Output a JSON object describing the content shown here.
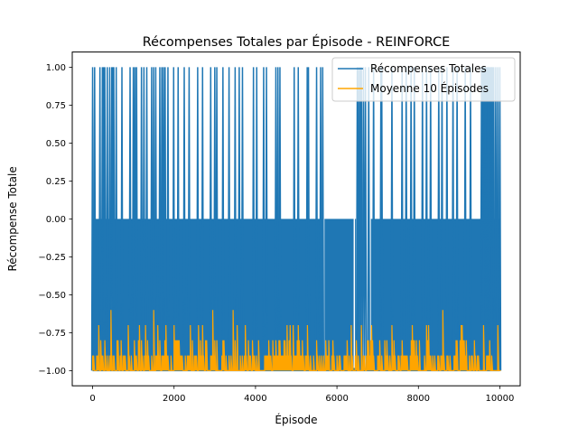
{
  "chart_data": {
    "type": "line",
    "title": "Récompenses Totales par Épisode - REINFORCE",
    "xlabel": "Épisode",
    "ylabel": "Récompense Totale",
    "xlim": [
      -500,
      10500
    ],
    "ylim": [
      -1.1,
      1.1
    ],
    "x_ticks": [
      0,
      2000,
      4000,
      6000,
      8000,
      10000
    ],
    "x_tick_labels": [
      "0",
      "2000",
      "4000",
      "6000",
      "8000",
      "10000"
    ],
    "y_ticks": [
      -1.0,
      -0.75,
      -0.5,
      -0.25,
      0.0,
      0.25,
      0.5,
      0.75,
      1.0
    ],
    "y_tick_labels": [
      "−1.00",
      "−0.75",
      "−0.50",
      "−0.25",
      "0.00",
      "0.25",
      "0.50",
      "0.75",
      "1.00"
    ],
    "grid": false,
    "legend_position": "top-right",
    "series": [
      {
        "name": "Récompenses Totales",
        "color": "#1f77b4",
        "values_description_free": true,
        "x_range": [
          0,
          10000
        ],
        "value_levels": [
          -1.0,
          0.0,
          1.0
        ],
        "win_episodes": [
          0,
          50,
          180,
          240,
          270,
          300,
          360,
          420,
          470,
          500,
          520,
          580,
          720,
          920,
          1000,
          1040,
          1080,
          1200,
          1260,
          1330,
          1450,
          1500,
          1550,
          1650,
          1700,
          1740,
          1780,
          1850,
          1990,
          2100,
          2250,
          2370,
          2580,
          2700,
          2900,
          3000,
          3050,
          3200,
          3350,
          3500,
          3600,
          3680,
          3950,
          4030,
          4200,
          4270,
          4500,
          4550,
          4600,
          4950,
          5050,
          5270,
          5300,
          5500,
          5600,
          5650,
          6500,
          6530,
          6570,
          6600,
          6650,
          6700,
          6780,
          6900,
          7080,
          7100,
          7350,
          7600,
          7700,
          7820,
          7900,
          8100,
          8200,
          8300,
          8500,
          8580,
          8700,
          8850,
          8950,
          9150,
          9280,
          9550,
          9560,
          9580,
          9600,
          9620,
          9650,
          9680,
          9700,
          9720,
          9750,
          9780,
          9800,
          9820,
          9850,
          9900,
          9950,
          10000
        ],
        "dense_zero_ranges": [
          [
            0,
            450
          ],
          [
            500,
            6450
          ],
          [
            6800,
            9500
          ],
          [
            9520,
            10000
          ]
        ],
        "neg_one_gaps": [
          [
            5660,
            5690
          ],
          [
            6410,
            6430
          ],
          [
            6520,
            6560
          ],
          [
            6800,
            6830
          ]
        ]
      },
      {
        "name": "Moyenne 10 Épisodes",
        "color": "#ffa500",
        "x_range": [
          0,
          10000
        ],
        "base_level": -1.0,
        "band_levels": [
          -0.9,
          -0.8
        ],
        "peaks": [
          [
            150,
            -0.7
          ],
          [
            450,
            -0.6
          ],
          [
            1150,
            -0.7
          ],
          [
            1300,
            -0.7
          ],
          [
            1500,
            -0.6
          ],
          [
            1600,
            -0.7
          ],
          [
            1800,
            -0.7
          ],
          [
            2000,
            -0.7
          ],
          [
            2400,
            -0.7
          ],
          [
            2700,
            -0.7
          ],
          [
            2950,
            -0.6
          ],
          [
            3450,
            -0.6
          ],
          [
            3560,
            -0.7
          ],
          [
            3750,
            -0.7
          ],
          [
            4850,
            -0.7
          ],
          [
            5050,
            -0.7
          ],
          [
            6350,
            -0.7
          ],
          [
            6600,
            -0.7
          ],
          [
            6850,
            -0.7
          ],
          [
            7350,
            -0.7
          ],
          [
            7850,
            -0.7
          ],
          [
            8250,
            -0.7
          ],
          [
            8600,
            -0.6
          ],
          [
            9050,
            -0.7
          ],
          [
            9600,
            -0.7
          ],
          [
            9950,
            -0.7
          ]
        ]
      }
    ]
  }
}
